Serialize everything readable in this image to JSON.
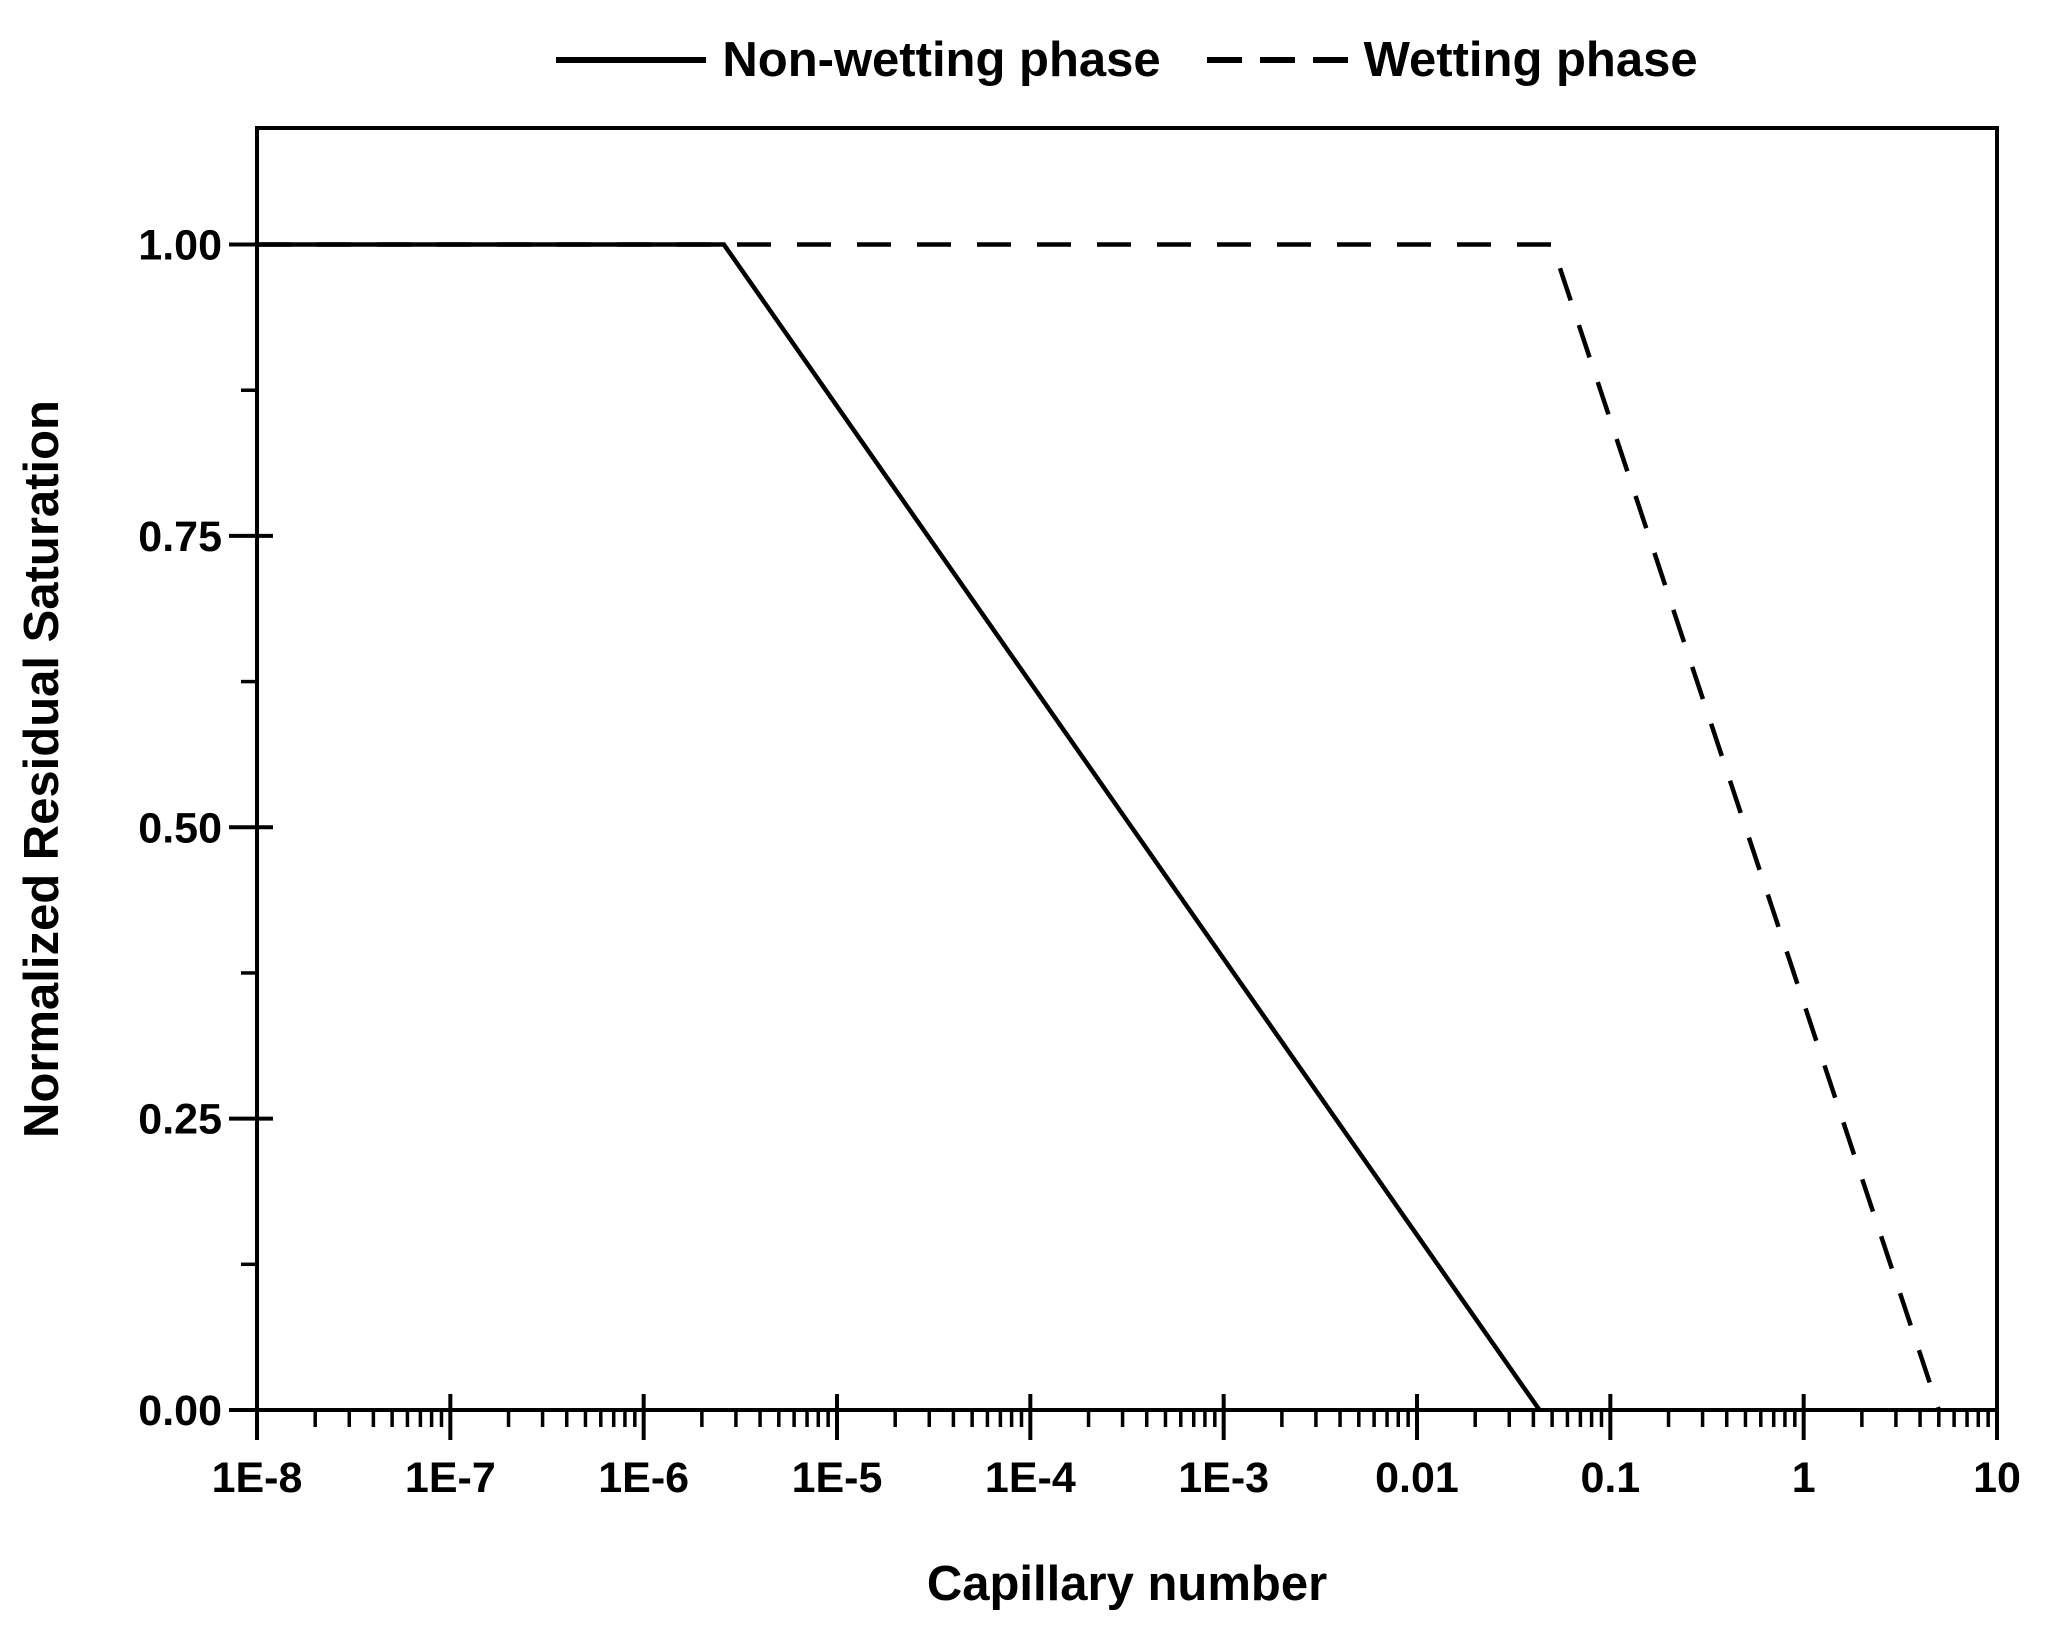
{
  "figure": {
    "ink_color": "#000000",
    "background_color": "#ffffff"
  },
  "legend": {
    "items": [
      {
        "label": "Non-wetting phase",
        "line_style": "solid"
      },
      {
        "label": "Wetting phase",
        "line_style": "dashed"
      }
    ]
  },
  "chart_data": {
    "type": "line",
    "title": "",
    "xlabel": "Capillary number",
    "ylabel": "Normalized Residual Saturation",
    "x_scale": "log",
    "y_scale": "linear",
    "xlim": [
      1e-08,
      10
    ],
    "ylim": [
      0,
      1.1
    ],
    "grid": false,
    "legend_position": "top-center",
    "x_ticks": [
      {
        "value": 1e-08,
        "label": "1E-8"
      },
      {
        "value": 1e-07,
        "label": "1E-7"
      },
      {
        "value": 1e-06,
        "label": "1E-6"
      },
      {
        "value": 1e-05,
        "label": "1E-5"
      },
      {
        "value": 0.0001,
        "label": "1E-4"
      },
      {
        "value": 0.001,
        "label": "1E-3"
      },
      {
        "value": 0.01,
        "label": "0.01"
      },
      {
        "value": 0.1,
        "label": "0.1"
      },
      {
        "value": 1,
        "label": "1"
      },
      {
        "value": 10,
        "label": "10"
      }
    ],
    "y_ticks": [
      {
        "value": 1.0,
        "label": "1.00"
      },
      {
        "value": 0.75,
        "label": "0.75"
      },
      {
        "value": 0.5,
        "label": "0.50"
      },
      {
        "value": 0.25,
        "label": "0.25"
      },
      {
        "value": 0.0,
        "label": "0.00"
      }
    ],
    "y_minor_ticks": [
      0.125,
      0.375,
      0.625,
      0.875
    ],
    "series": [
      {
        "name": "Non-wetting phase",
        "line_style": "solid",
        "points": [
          [
            1e-08,
            1.0
          ],
          [
            2.6e-06,
            1.0
          ],
          [
            0.043,
            0.0
          ]
        ]
      },
      {
        "name": "Wetting phase",
        "line_style": "dashed",
        "points": [
          [
            1e-08,
            1.0
          ],
          [
            0.05,
            1.0
          ],
          [
            5.0,
            0.0
          ]
        ]
      }
    ]
  }
}
